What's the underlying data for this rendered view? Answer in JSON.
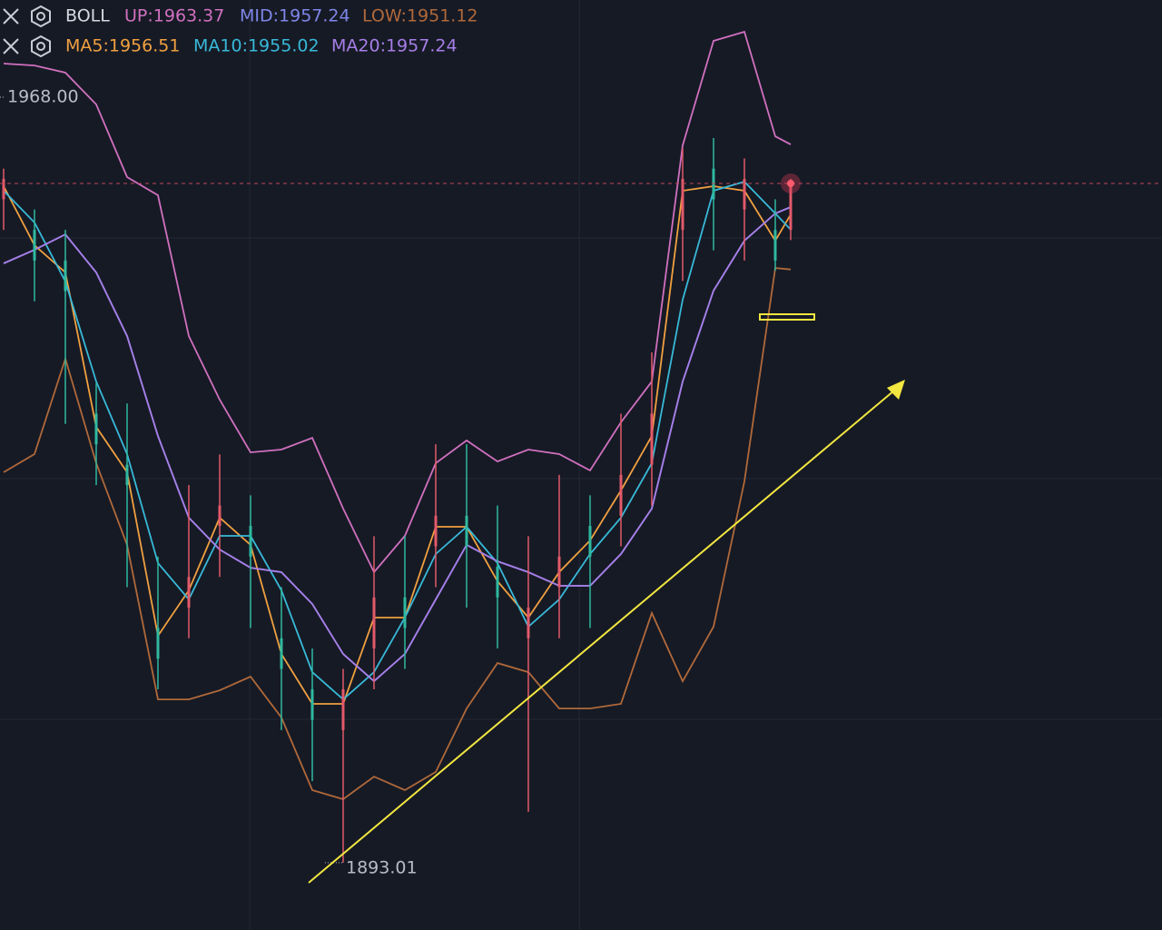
{
  "chart_data": {
    "type": "candlestick",
    "xlim": [
      -0.47,
      150.12
    ],
    "ylim": [
      1886.42,
      1977.52
    ],
    "grid_x": [
      31.9,
      74.6
    ],
    "grid_y": [
      1954.21,
      1930.63,
      1907.06
    ],
    "indicators": [
      {
        "name": "BOLL",
        "series": [
          {
            "legend": "UP:1963.37",
            "color": "#d070bf",
            "values": [
              1971.29,
              1971.11,
              1970.4,
              1967.29,
              1960.17,
              1958.39,
              1944.6,
              1938.37,
              1933.21,
              1933.48,
              1934.63,
              1927.7,
              1921.47,
              1925.03,
              1932.15,
              1934.37,
              1932.32,
              1933.48,
              1933.04,
              1931.44,
              1936.15,
              1940.15,
              1963.28,
              1973.52,
              1974.41,
              1964.17,
              1963.37
            ]
          },
          {
            "legend": "MID:1957.24",
            "color": "#7f86e8",
            "values": [
              1951.72,
              1953.05,
              1954.56,
              1950.83,
              1944.6,
              1934.81,
              1926.81,
              1923.69,
              1921.91,
              1921.47,
              1918.36,
              1913.46,
              1910.79,
              1913.46,
              1918.8,
              1924.14,
              1922.54,
              1921.47,
              1920.14,
              1920.14,
              1923.25,
              1927.7,
              1940.15,
              1949.05,
              1953.94,
              1956.61,
              1957.24
            ]
          },
          {
            "legend": "LOW:1951.12",
            "color": "#b0693a",
            "values": [
              1931.26,
              1933.04,
              1942.38,
              1932.15,
              1924.14,
              1909.01,
              1909.01,
              1909.9,
              1911.24,
              1907.23,
              1900.12,
              1899.23,
              1901.45,
              1900.12,
              1901.9,
              1908.12,
              1912.57,
              1911.68,
              1908.12,
              1908.12,
              1908.57,
              1917.47,
              1910.79,
              1916.13,
              1930.37,
              1951.27,
              1951.12
            ]
          }
        ]
      },
      {
        "series": [
          {
            "legend": "MA5:1956.51",
            "color": "#f0a040",
            "values": [
              1959.28,
              1953.5,
              1950.83,
              1935.7,
              1931.26,
              1915.24,
              1919.69,
              1926.81,
              1924.14,
              1913.46,
              1908.57,
              1908.57,
              1917.02,
              1917.02,
              1925.92,
              1925.92,
              1920.58,
              1917.02,
              1921.47,
              1924.58,
              1929.48,
              1934.81,
              1958.84,
              1959.28,
              1958.84,
              1953.94,
              1956.51
            ]
          },
          {
            "legend": "MA10:1955.02",
            "color": "#38b9d8",
            "values": [
              1958.84,
              1955.72,
              1949.94,
              1940.15,
              1933.04,
              1922.36,
              1918.8,
              1925.03,
              1925.03,
              1919.69,
              1911.68,
              1909.01,
              1911.68,
              1917.02,
              1923.25,
              1925.92,
              1922.36,
              1916.13,
              1918.8,
              1923.25,
              1926.81,
              1932.15,
              1948.16,
              1958.84,
              1959.73,
              1956.61,
              1955.02
            ]
          },
          {
            "legend": "MA20:1957.24",
            "color": "#a67ee6",
            "values": [
              1951.72,
              1953.05,
              1954.56,
              1950.83,
              1944.6,
              1934.81,
              1926.81,
              1923.69,
              1921.91,
              1921.47,
              1918.36,
              1913.46,
              1910.79,
              1913.46,
              1918.8,
              1924.14,
              1922.54,
              1921.47,
              1920.14,
              1920.14,
              1923.25,
              1927.7,
              1940.15,
              1949.05,
              1953.94,
              1956.61,
              1957.24
            ]
          }
        ]
      }
    ],
    "x": [
      0,
      4,
      8,
      12,
      16,
      20,
      24,
      28,
      32,
      36,
      40,
      44,
      48,
      52,
      56,
      60,
      64,
      68,
      72,
      76,
      80,
      84,
      88,
      92,
      96,
      100,
      102
    ],
    "candles": {
      "up_color": "#e25a6a",
      "down_color": "#2fb9a0",
      "open": [
        1958,
        1955,
        1952,
        1937,
        1932,
        1916,
        1918,
        1926,
        1926,
        1915,
        1910,
        1906,
        1914,
        1919,
        1924,
        1927,
        1922,
        1915,
        1920,
        1926,
        1927,
        1932,
        1955,
        1961,
        1957,
        1955,
        1955
      ],
      "high": [
        1961,
        1957,
        1955,
        1940,
        1938,
        1923,
        1930,
        1933,
        1929,
        1920,
        1914,
        1912,
        1925,
        1925,
        1934,
        1934,
        1928,
        1925,
        1931,
        1929,
        1937,
        1943,
        1963,
        1964,
        1962,
        1958,
        1960
      ],
      "low": [
        1955,
        1948,
        1936,
        1930,
        1920,
        1910,
        1915,
        1921,
        1916,
        1906,
        1901,
        1893.01,
        1910,
        1912,
        1920,
        1918,
        1914,
        1898,
        1915,
        1916,
        1924,
        1928,
        1950,
        1953,
        1952,
        1951,
        1954
      ],
      "close": [
        1960,
        1952,
        1949,
        1934,
        1930,
        1913,
        1921,
        1928,
        1923,
        1912,
        1907,
        1910,
        1919,
        1916,
        1927,
        1924,
        1919,
        1918,
        1923,
        1923,
        1931,
        1937,
        1960,
        1958,
        1960,
        1952,
        1959.55
      ]
    },
    "price_line_color": "#c0455a",
    "high_marker": {
      "value": 1968.0,
      "label": "1968.00"
    },
    "low_marker": {
      "value": 1893.01,
      "label": "1893.01"
    }
  }
}
